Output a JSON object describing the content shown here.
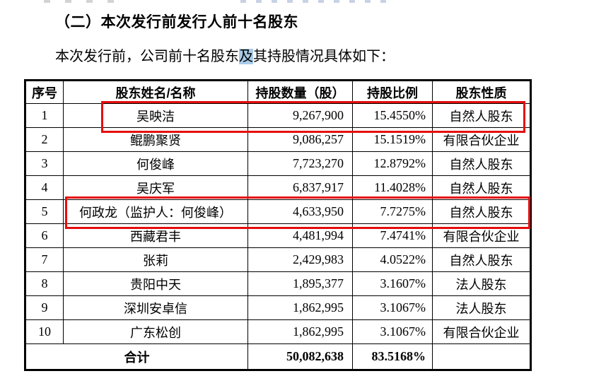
{
  "section": {
    "heading": "（二）本次发行前发行人前十名股东"
  },
  "intro": {
    "before": "本次发行前，公司前十名股东",
    "highlighted": "及",
    "after": "其持股情况具体如下："
  },
  "table": {
    "headers": [
      "序号",
      "股东姓名/名称",
      "持股数量（股）",
      "持股比例",
      "股东性质"
    ],
    "rows": [
      {
        "no": "1",
        "name": "吴映洁",
        "shares": "9,267,900",
        "ratio": "15.4550%",
        "nature": "自然人股东",
        "annotated": true
      },
      {
        "no": "2",
        "name": "鲲鹏聚贤",
        "shares": "9,086,257",
        "ratio": "15.1519%",
        "nature": "有限合伙企业",
        "annotated": false
      },
      {
        "no": "3",
        "name": "何俊峰",
        "shares": "7,723,270",
        "ratio": "12.8792%",
        "nature": "自然人股东",
        "annotated": false
      },
      {
        "no": "4",
        "name": "吴庆军",
        "shares": "6,837,917",
        "ratio": "11.4028%",
        "nature": "自然人股东",
        "annotated": false
      },
      {
        "no": "5",
        "name": "何政龙（监护人：何俊峰）",
        "shares": "4,633,950",
        "ratio": "7.7275%",
        "nature": "自然人股东",
        "annotated": true
      },
      {
        "no": "6",
        "name": "西藏君丰",
        "shares": "4,481,994",
        "ratio": "7.4741%",
        "nature": "有限合伙企业",
        "annotated": false
      },
      {
        "no": "7",
        "name": "张莉",
        "shares": "2,429,983",
        "ratio": "4.0522%",
        "nature": "自然人股东",
        "annotated": false
      },
      {
        "no": "8",
        "name": "贵阳中天",
        "shares": "1,895,377",
        "ratio": "3.1607%",
        "nature": "法人股东",
        "annotated": false
      },
      {
        "no": "9",
        "name": "深圳安卓信",
        "shares": "1,862,995",
        "ratio": "3.1067%",
        "nature": "法人股东",
        "annotated": false
      },
      {
        "no": "10",
        "name": "广东松创",
        "shares": "1,862,995",
        "ratio": "3.1067%",
        "nature": "有限合伙企业",
        "annotated": false
      }
    ],
    "total": {
      "label": "合计",
      "shares": "50,082,638",
      "ratio": "83.5168%",
      "nature": ""
    }
  },
  "colors": {
    "annotation_red": "#e60d0d",
    "selection_highlight_blue": "#a9cbe8",
    "table_border": "#000000",
    "text": "#000000",
    "background": "#ffffff"
  }
}
